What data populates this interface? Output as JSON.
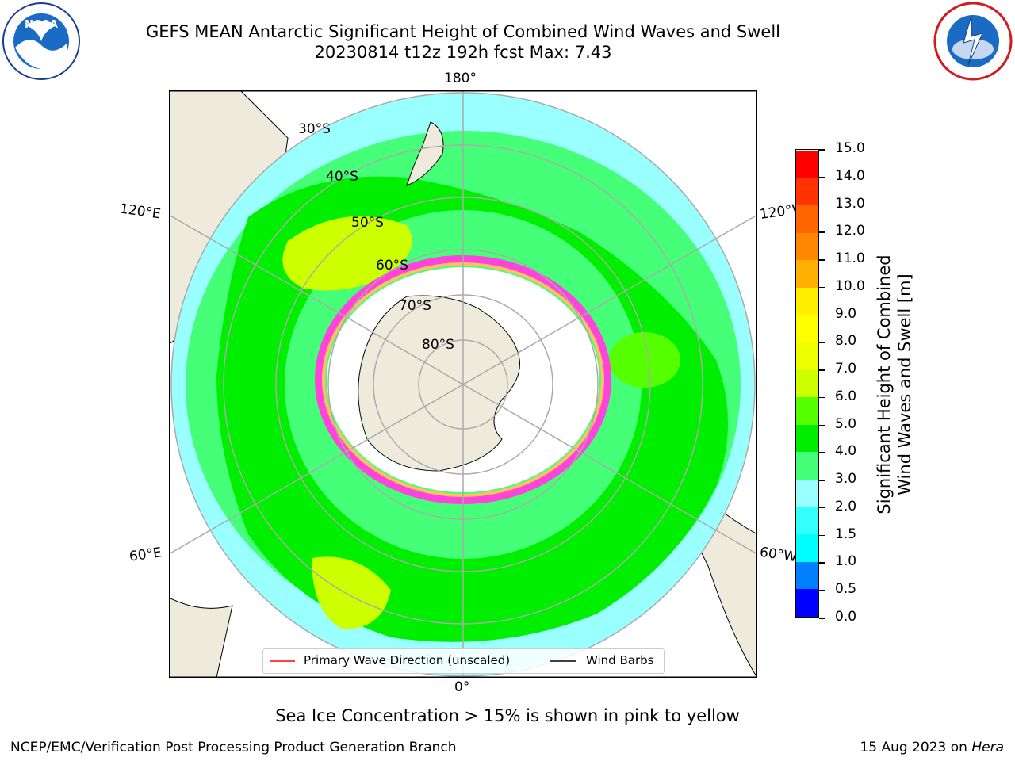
{
  "title": {
    "line1": "GEFS MEAN Antarctic Significant Height of Combined Wind Waves and Swell",
    "line2": "20230814 t12z 192h fcst   Max: 7.43"
  },
  "map": {
    "longitude_labels": [
      "180°",
      "120°E",
      "120°W",
      "60°E",
      "60°W",
      "0°"
    ],
    "latitude_labels": [
      "30°S",
      "40°S",
      "50°S",
      "60°S",
      "70°S",
      "80°S"
    ],
    "sea_ice_colors": [
      "#ff44dd",
      "#ffc060"
    ]
  },
  "colorbar": {
    "label_line1": "Significant Height of Combined",
    "label_line2": "Wind Waves and Swell [m]",
    "ticks": [
      "0.0",
      "0.5",
      "1.0",
      "1.5",
      "2.0",
      "3.0",
      "4.0",
      "5.0",
      "6.0",
      "7.0",
      "8.0",
      "9.0",
      "10.0",
      "11.0",
      "12.0",
      "13.0",
      "14.0",
      "15.0"
    ],
    "colors": [
      "#0000ff",
      "#0080ff",
      "#00ffff",
      "#33ffff",
      "#99ffff",
      "#44ff77",
      "#00ee00",
      "#55ff00",
      "#ccff00",
      "#eeff00",
      "#ffff00",
      "#ffee00",
      "#ffb000",
      "#ff8800",
      "#ff6600",
      "#ff3300",
      "#ff0000"
    ]
  },
  "legend": {
    "wave_label": "Primary Wave Direction (unscaled)",
    "wind_label": "Wind Barbs",
    "wave_color": "#ff0000",
    "wind_color": "#000000"
  },
  "footer": {
    "note": "Sea Ice Concentration > 15% is shown in pink to yellow",
    "credit": "NCEP/EMC/Verification Post Processing Product Generation Branch",
    "date_prefix": "15 Aug 2023 on ",
    "machine": "Hera"
  },
  "icons": {
    "left_logo": "noaa-logo-icon",
    "right_logo": "nws-logo-icon"
  }
}
